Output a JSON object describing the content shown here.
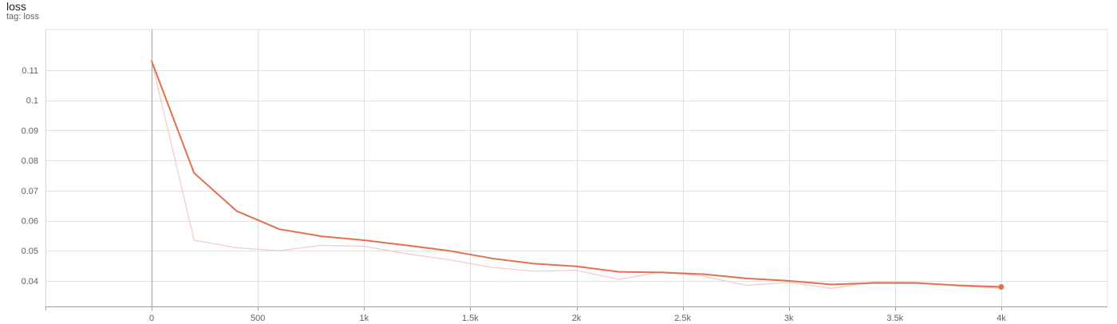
{
  "card": {
    "title": "loss",
    "tag": "tag: loss"
  },
  "chart_data": {
    "type": "line",
    "title": "loss",
    "subtitle": "tag: loss",
    "xlabel": "",
    "ylabel": "",
    "xlim": [
      -500,
      4500
    ],
    "ylim": [
      0.0315,
      0.1235
    ],
    "grid": true,
    "x_ticks": [
      {
        "value": 0,
        "label": "0"
      },
      {
        "value": 500,
        "label": "500"
      },
      {
        "value": 1000,
        "label": "1k"
      },
      {
        "value": 1500,
        "label": "1.5k"
      },
      {
        "value": 2000,
        "label": "2k"
      },
      {
        "value": 2500,
        "label": "2.5k"
      },
      {
        "value": 3000,
        "label": "3k"
      },
      {
        "value": 3500,
        "label": "3.5k"
      },
      {
        "value": 4000,
        "label": "4k"
      }
    ],
    "y_ticks": [
      {
        "value": 0.04,
        "label": "0.04"
      },
      {
        "value": 0.05,
        "label": "0.05"
      },
      {
        "value": 0.06,
        "label": "0.06"
      },
      {
        "value": 0.07,
        "label": "0.07"
      },
      {
        "value": 0.08,
        "label": "0.08"
      },
      {
        "value": 0.09,
        "label": "0.09"
      },
      {
        "value": 0.1,
        "label": "0.1"
      },
      {
        "value": 0.11,
        "label": "0.11"
      }
    ],
    "series": [
      {
        "role": "raw",
        "color": "#f0cbbf",
        "x": [
          0,
          200,
          400,
          600,
          800,
          1000,
          1200,
          1400,
          1600,
          1800,
          2000,
          2200,
          2400,
          2600,
          2800,
          3000,
          3200,
          3400,
          3600,
          3800,
          4000
        ],
        "y": [
          0.113,
          0.0535,
          0.051,
          0.05,
          0.0518,
          0.0515,
          0.049,
          0.047,
          0.0445,
          0.0432,
          0.0435,
          0.0405,
          0.043,
          0.0415,
          0.0385,
          0.0395,
          0.0375,
          0.0397,
          0.0395,
          0.0383,
          0.0375
        ]
      },
      {
        "role": "smoothed",
        "color": "#e2704f",
        "x": [
          0,
          200,
          400,
          600,
          800,
          1000,
          1200,
          1400,
          1600,
          1800,
          2000,
          2200,
          2400,
          2600,
          2800,
          3000,
          3200,
          3400,
          3600,
          3800,
          4000
        ],
        "y": [
          0.113,
          0.0758,
          0.0632,
          0.0572,
          0.0548,
          0.0535,
          0.0518,
          0.05,
          0.0475,
          0.0457,
          0.0448,
          0.043,
          0.0428,
          0.0422,
          0.0408,
          0.04,
          0.0388,
          0.0393,
          0.0393,
          0.0385,
          0.038
        ]
      }
    ]
  }
}
